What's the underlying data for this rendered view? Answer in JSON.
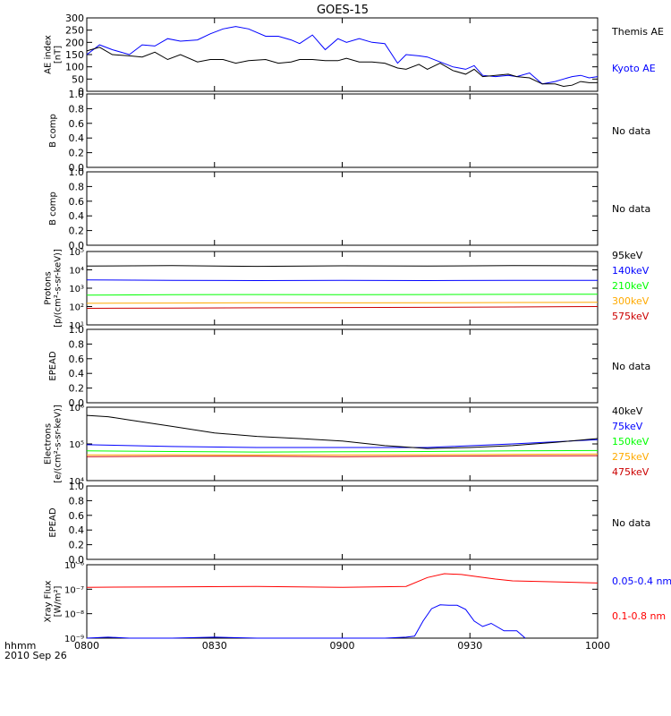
{
  "title": "GOES-15",
  "time_axis": {
    "ticks": [
      "0800",
      "0830",
      "0900",
      "0930",
      "1000"
    ],
    "corner_label": "hhmm",
    "date": "2010 Sep 26"
  },
  "colors": {
    "black": "#000000",
    "blue": "#0000ff",
    "red": "#ff0000",
    "green": "#00ff00",
    "orange": "#ffaa00",
    "darkred": "#cc0000"
  },
  "chart_data": [
    {
      "id": "ae",
      "type": "line",
      "ylabel_lines": [
        "AE index",
        "[nT]"
      ],
      "ylim": [
        0,
        300
      ],
      "yticks": [
        "0",
        "50",
        "100",
        "150",
        "200",
        "250",
        "300"
      ],
      "x_range": [
        0,
        120
      ],
      "series": [
        {
          "name": "Kyoto AE",
          "color": "#0000ff",
          "x": [
            0,
            3,
            6,
            10,
            13,
            16,
            19,
            22,
            26,
            29,
            32,
            35,
            38,
            42,
            45,
            48,
            50,
            53,
            56,
            59,
            61,
            64,
            67,
            70,
            73,
            75,
            78,
            80,
            83,
            86,
            89,
            91,
            93,
            96,
            99,
            101,
            104,
            107,
            110,
            112,
            114,
            116,
            118,
            120
          ],
          "y": [
            150,
            190,
            170,
            150,
            190,
            185,
            215,
            205,
            210,
            235,
            255,
            265,
            255,
            225,
            225,
            210,
            195,
            230,
            170,
            215,
            200,
            215,
            200,
            195,
            115,
            150,
            145,
            140,
            120,
            100,
            90,
            105,
            65,
            60,
            65,
            60,
            75,
            30,
            40,
            50,
            60,
            65,
            55,
            60
          ]
        },
        {
          "name": "Themis AE",
          "color": "#000000",
          "x": [
            0,
            3,
            6,
            10,
            13,
            16,
            19,
            22,
            26,
            29,
            32,
            35,
            38,
            42,
            45,
            48,
            50,
            53,
            56,
            59,
            61,
            64,
            67,
            70,
            73,
            75,
            78,
            80,
            83,
            86,
            89,
            91,
            93,
            96,
            99,
            101,
            104,
            107,
            110,
            112,
            114,
            116,
            118,
            120
          ],
          "y": [
            165,
            180,
            150,
            145,
            140,
            160,
            130,
            150,
            120,
            130,
            130,
            115,
            125,
            130,
            115,
            120,
            130,
            130,
            125,
            125,
            135,
            120,
            120,
            115,
            95,
            90,
            110,
            90,
            115,
            85,
            70,
            90,
            60,
            65,
            70,
            60,
            55,
            30,
            30,
            20,
            25,
            40,
            35,
            35
          ]
        }
      ]
    },
    {
      "id": "bcomp1",
      "type": "line",
      "ylabel_lines": [
        "B comp"
      ],
      "ylim": [
        0,
        1
      ],
      "yticks": [
        "0.0",
        "0.2",
        "0.4",
        "0.6",
        "0.8",
        "1.0"
      ],
      "series": [],
      "note": "No data"
    },
    {
      "id": "bcomp2",
      "type": "line",
      "ylabel_lines": [
        "B comp"
      ],
      "ylim": [
        0,
        1
      ],
      "yticks": [
        "0.0",
        "0.2",
        "0.4",
        "0.6",
        "0.8",
        "1.0"
      ],
      "series": [],
      "note": "No data"
    },
    {
      "id": "protons",
      "type": "line",
      "log": true,
      "ylabel_lines": [
        "Protons",
        "[p/(cm²-s-sr-keV)]"
      ],
      "ylim_exp": [
        1,
        5
      ],
      "yticks": [
        "10¹",
        "10²",
        "10³",
        "10⁴",
        "10⁵"
      ],
      "x_range": [
        0,
        120
      ],
      "series": [
        {
          "name": "575keV",
          "color": "#cc0000",
          "x": [
            0,
            20,
            40,
            60,
            80,
            100,
            120
          ],
          "y": [
            80,
            82,
            85,
            88,
            90,
            95,
            100
          ]
        },
        {
          "name": "300keV",
          "color": "#ffaa00",
          "x": [
            0,
            20,
            40,
            60,
            80,
            100,
            120
          ],
          "y": [
            150,
            155,
            160,
            158,
            160,
            165,
            170
          ]
        },
        {
          "name": "210keV",
          "color": "#00ff00",
          "x": [
            0,
            20,
            40,
            60,
            80,
            100,
            120
          ],
          "y": [
            420,
            440,
            450,
            440,
            450,
            460,
            470
          ]
        },
        {
          "name": "140keV",
          "color": "#0000ff",
          "x": [
            0,
            20,
            40,
            60,
            80,
            100,
            120
          ],
          "y": [
            2800,
            2700,
            2600,
            2650,
            2600,
            2700,
            2700
          ]
        },
        {
          "name": "95keV",
          "color": "#000000",
          "x": [
            0,
            20,
            40,
            60,
            80,
            100,
            120
          ],
          "y": [
            16000,
            17000,
            15500,
            16500,
            16000,
            17000,
            16500
          ]
        }
      ]
    },
    {
      "id": "epead1",
      "type": "line",
      "ylabel_lines": [
        "EPEAD"
      ],
      "ylim": [
        0,
        1
      ],
      "yticks": [
        "0.0",
        "0.2",
        "0.4",
        "0.6",
        "0.8",
        "1.0"
      ],
      "series": [],
      "note": "No data"
    },
    {
      "id": "electrons",
      "type": "line",
      "log": true,
      "ylabel_lines": [
        "Electrons",
        "[e/(cm²-s-sr-keV)]"
      ],
      "ylim_exp": [
        4,
        6
      ],
      "yticks": [
        "10⁴",
        "10⁵",
        "10⁶"
      ],
      "x_range": [
        0,
        120
      ],
      "series": [
        {
          "name": "475keV",
          "color": "#cc0000",
          "x": [
            0,
            20,
            40,
            60,
            80,
            100,
            120
          ],
          "y": [
            45000,
            46000,
            46000,
            45000,
            46000,
            47000,
            48000
          ]
        },
        {
          "name": "275keV",
          "color": "#ffaa00",
          "x": [
            0,
            20,
            40,
            60,
            80,
            100,
            120
          ],
          "y": [
            50000,
            51000,
            50000,
            50000,
            51000,
            52000,
            53000
          ]
        },
        {
          "name": "150keV",
          "color": "#00ff00",
          "x": [
            0,
            20,
            40,
            60,
            80,
            100,
            120
          ],
          "y": [
            65000,
            62000,
            60000,
            61000,
            62000,
            65000,
            66000
          ]
        },
        {
          "name": "75keV",
          "color": "#0000ff",
          "x": [
            0,
            20,
            40,
            60,
            80,
            100,
            120
          ],
          "y": [
            95000,
            85000,
            80000,
            80000,
            80000,
            100000,
            130000
          ]
        },
        {
          "name": "40keV",
          "color": "#000000",
          "x": [
            0,
            5,
            10,
            20,
            30,
            40,
            50,
            60,
            70,
            80,
            90,
            100,
            110,
            120
          ],
          "y": [
            600000,
            550000,
            450000,
            300000,
            200000,
            160000,
            140000,
            120000,
            90000,
            75000,
            80000,
            90000,
            110000,
            140000
          ]
        }
      ]
    },
    {
      "id": "epead2",
      "type": "line",
      "ylabel_lines": [
        "EPEAD"
      ],
      "ylim": [
        0,
        1
      ],
      "yticks": [
        "0.0",
        "0.2",
        "0.4",
        "0.6",
        "0.8",
        "1.0"
      ],
      "series": [],
      "note": "No data"
    },
    {
      "id": "xray",
      "type": "line",
      "log": true,
      "ylabel_lines": [
        "Xray Flux",
        "[W/m²]"
      ],
      "ylim_exp": [
        -9,
        -6
      ],
      "yticks": [
        "10⁻⁹",
        "10⁻⁸",
        "10⁻⁷",
        "10⁻⁶"
      ],
      "x_range": [
        0,
        120
      ],
      "series": [
        {
          "name": "0.1-0.8 nm",
          "color": "#ff0000",
          "x": [
            0,
            20,
            40,
            60,
            75,
            80,
            84,
            88,
            92,
            96,
            100,
            110,
            120
          ],
          "y": [
            1.2e-07,
            1.25e-07,
            1.3e-07,
            1.2e-07,
            1.3e-07,
            3e-07,
            4.3e-07,
            4e-07,
            3.2e-07,
            2.6e-07,
            2.2e-07,
            2e-07,
            1.8e-07
          ]
        },
        {
          "name": "0.05-0.4 nm",
          "color": "#0000ff",
          "x": [
            0,
            5,
            10,
            20,
            30,
            40,
            50,
            60,
            70,
            75,
            77,
            79,
            81,
            83,
            85,
            87,
            89,
            91,
            93,
            95,
            98,
            101,
            103
          ],
          "y": [
            1e-09,
            1.1e-09,
            1e-09,
            1e-09,
            1.1e-09,
            1e-09,
            1e-09,
            1e-09,
            1e-09,
            1.1e-09,
            1.2e-09,
            5e-09,
            1.6e-08,
            2.3e-08,
            2.2e-08,
            2.2e-08,
            1.5e-08,
            5e-09,
            3e-09,
            4e-09,
            2e-09,
            2e-09,
            1e-09
          ]
        }
      ]
    }
  ]
}
